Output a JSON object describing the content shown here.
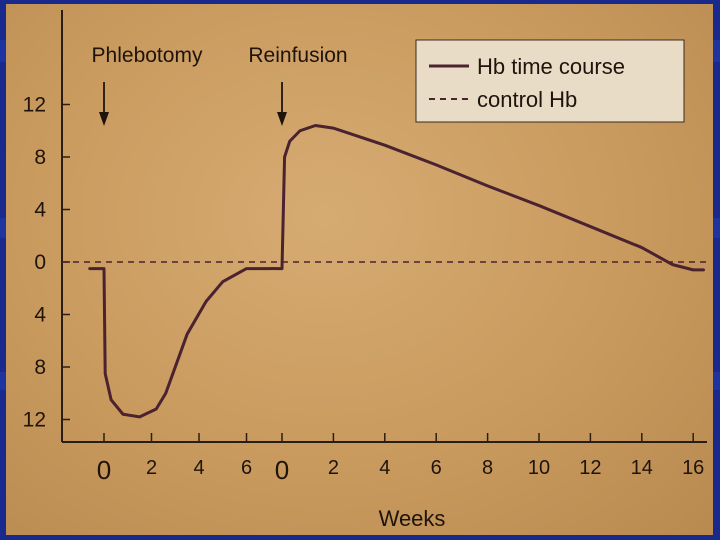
{
  "colors": {
    "slide_background": "#1a2a8c",
    "plot_background": "#c99a5e",
    "line": "#4a2230",
    "text": "#1e140c"
  },
  "chart_data": {
    "type": "line",
    "xlabel": "Weeks",
    "ylabel": "",
    "grid": false,
    "legend_position": "top-right",
    "y_tick_labels": [
      "12",
      "8",
      "4",
      "0",
      "4",
      "8",
      "12"
    ],
    "y_ticks": [
      12,
      8,
      4,
      0,
      -4,
      -8,
      -12
    ],
    "ylim": [
      -13.5,
      19
    ],
    "x_tick_labels": [
      "0",
      "2",
      "4",
      "6",
      "0",
      "2",
      "4",
      "6",
      "8",
      "10",
      "12",
      "14",
      "16"
    ],
    "phases": [
      {
        "annotation": "Phlebotomy",
        "xlim": [
          -0.5,
          7.1
        ],
        "ticks": [
          0,
          2,
          4,
          6
        ]
      },
      {
        "annotation": "Reinfusion",
        "xlim": [
          -0.2,
          17
        ],
        "ticks": [
          0,
          2,
          4,
          6,
          8,
          10,
          12,
          14,
          16
        ]
      }
    ],
    "series": [
      {
        "name": "Hb time course",
        "style": "solid",
        "phase1": {
          "x": [
            -0.6,
            0,
            0.05,
            0.3,
            0.8,
            1.5,
            2.2,
            2.6,
            2.9,
            3.5,
            4.3,
            5.0,
            6.0,
            7.0
          ],
          "y": [
            -0.5,
            -0.5,
            -8.5,
            -10.5,
            -11.6,
            -11.8,
            -11.2,
            -10.0,
            -8.5,
            -5.5,
            -3.0,
            -1.5,
            -0.5,
            -0.5
          ]
        },
        "phase2": {
          "x": [
            -0.2,
            0,
            0.1,
            0.3,
            0.7,
            1.3,
            2.0,
            4.0,
            6.0,
            8.0,
            10.0,
            12.0,
            14.0,
            15.2,
            16.0,
            16.4
          ],
          "y": [
            -0.5,
            -0.5,
            8.0,
            9.2,
            10.0,
            10.4,
            10.2,
            8.9,
            7.4,
            5.8,
            4.3,
            2.7,
            1.1,
            -0.2,
            -0.6,
            -0.6
          ]
        }
      },
      {
        "name": "control Hb",
        "style": "dashed",
        "y": 0
      }
    ]
  }
}
